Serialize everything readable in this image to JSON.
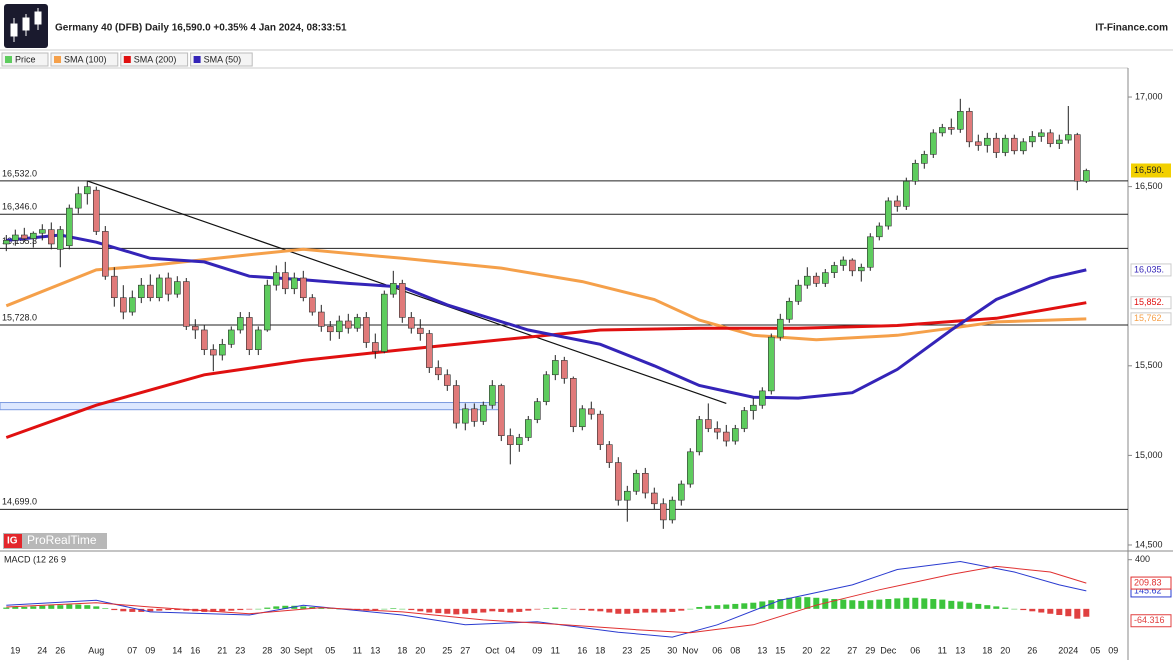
{
  "header": {
    "title": "Germany 40 (DFB) Daily 16,590.0 +0.35% 4 Jan 2024, 08:33:51",
    "site": "IT-Finance.com",
    "logo": "ProRealTime"
  },
  "chart_data": [
    {
      "type": "candlestick",
      "name": "Price",
      "color_up": "#5ecc5e",
      "color_down": "#e07a7a",
      "last_label": "16,590.",
      "categories": [
        null,
        "19",
        null,
        null,
        "24",
        null,
        "26",
        null,
        null,
        null,
        "Aug",
        null,
        null,
        null,
        "07",
        null,
        "09",
        null,
        null,
        "14",
        null,
        "16",
        null,
        null,
        "21",
        null,
        "23",
        null,
        null,
        "28",
        null,
        "30",
        null,
        "Sept",
        null,
        null,
        "05",
        null,
        null,
        "11",
        null,
        "13",
        null,
        null,
        "18",
        null,
        "20",
        null,
        null,
        "25",
        null,
        "27",
        null,
        null,
        "Oct",
        null,
        "04",
        null,
        null,
        "09",
        null,
        "11",
        null,
        null,
        "16",
        null,
        "18",
        null,
        null,
        "23",
        null,
        "25",
        null,
        null,
        "30",
        null,
        "Nov",
        null,
        null,
        "06",
        null,
        "08",
        null,
        null,
        "13",
        null,
        "15",
        null,
        null,
        "20",
        null,
        "22",
        null,
        null,
        "27",
        null,
        "29",
        null,
        "Dec",
        null,
        null,
        "06",
        null,
        null,
        "11",
        null,
        "13",
        null,
        null,
        "18",
        null,
        "20",
        null,
        null,
        "26",
        null,
        null,
        null,
        "2024",
        null,
        null,
        "05",
        null,
        "09"
      ],
      "candles": [
        [
          16180,
          16230,
          16140,
          16200
        ],
        [
          16200,
          16260,
          16170,
          16230
        ],
        [
          16230,
          16270,
          16190,
          16210
        ],
        [
          16210,
          16250,
          16160,
          16240
        ],
        [
          16240,
          16290,
          16200,
          16260
        ],
        [
          16260,
          16300,
          16150,
          16180
        ],
        [
          16150,
          16280,
          16050,
          16260
        ],
        [
          16170,
          16400,
          16150,
          16380
        ],
        [
          16380,
          16500,
          16350,
          16460
        ],
        [
          16460,
          16532,
          16400,
          16500
        ],
        [
          16480,
          16500,
          16230,
          16250
        ],
        [
          16250,
          16280,
          15980,
          16000
        ],
        [
          16000,
          16050,
          15830,
          15880
        ],
        [
          15880,
          15950,
          15760,
          15800
        ],
        [
          15800,
          15920,
          15780,
          15880
        ],
        [
          15880,
          15990,
          15850,
          15950
        ],
        [
          15950,
          16010,
          15860,
          15880
        ],
        [
          15880,
          16010,
          15860,
          15990
        ],
        [
          15990,
          16020,
          15860,
          15900
        ],
        [
          15900,
          16000,
          15880,
          15970
        ],
        [
          15970,
          15990,
          15700,
          15720
        ],
        [
          15720,
          15760,
          15650,
          15700
        ],
        [
          15700,
          15730,
          15560,
          15590
        ],
        [
          15590,
          15620,
          15470,
          15560
        ],
        [
          15560,
          15650,
          15530,
          15620
        ],
        [
          15620,
          15720,
          15600,
          15700
        ],
        [
          15700,
          15800,
          15680,
          15770
        ],
        [
          15770,
          15800,
          15560,
          15590
        ],
        [
          15590,
          15720,
          15560,
          15700
        ],
        [
          15700,
          15980,
          15690,
          15950
        ],
        [
          15950,
          16060,
          15920,
          16020
        ],
        [
          16020,
          16080,
          15900,
          15930
        ],
        [
          15930,
          16020,
          15900,
          15990
        ],
        [
          15990,
          16030,
          15860,
          15880
        ],
        [
          15880,
          15900,
          15780,
          15800
        ],
        [
          15800,
          15840,
          15690,
          15720
        ],
        [
          15720,
          15750,
          15640,
          15690
        ],
        [
          15690,
          15780,
          15650,
          15750
        ],
        [
          15750,
          15790,
          15680,
          15710
        ],
        [
          15710,
          15790,
          15690,
          15770
        ],
        [
          15770,
          15800,
          15600,
          15630
        ],
        [
          15630,
          15680,
          15540,
          15580
        ],
        [
          15580,
          15920,
          15570,
          15900
        ],
        [
          15900,
          16030,
          15880,
          15960
        ],
        [
          15960,
          15980,
          15740,
          15770
        ],
        [
          15770,
          15800,
          15680,
          15710
        ],
        [
          15710,
          15760,
          15640,
          15680
        ],
        [
          15680,
          15700,
          15460,
          15490
        ],
        [
          15490,
          15530,
          15420,
          15450
        ],
        [
          15450,
          15480,
          15360,
          15390
        ],
        [
          15390,
          15420,
          15150,
          15180
        ],
        [
          15180,
          15290,
          15140,
          15260
        ],
        [
          15260,
          15290,
          15160,
          15190
        ],
        [
          15190,
          15300,
          15170,
          15280
        ],
        [
          15280,
          15420,
          15260,
          15390
        ],
        [
          15390,
          15400,
          15080,
          15110
        ],
        [
          15110,
          15150,
          14950,
          15060
        ],
        [
          15060,
          15120,
          15020,
          15100
        ],
        [
          15100,
          15220,
          15080,
          15200
        ],
        [
          15200,
          15320,
          15180,
          15300
        ],
        [
          15300,
          15470,
          15280,
          15450
        ],
        [
          15450,
          15560,
          15420,
          15530
        ],
        [
          15530,
          15550,
          15400,
          15430
        ],
        [
          15430,
          15440,
          15130,
          15160
        ],
        [
          15160,
          15280,
          15140,
          15260
        ],
        [
          15260,
          15300,
          15200,
          15230
        ],
        [
          15230,
          15250,
          15030,
          15060
        ],
        [
          15060,
          15080,
          14930,
          14960
        ],
        [
          14960,
          14990,
          14720,
          14750
        ],
        [
          14750,
          14830,
          14630,
          14800
        ],
        [
          14800,
          14920,
          14780,
          14900
        ],
        [
          14900,
          14930,
          14760,
          14790
        ],
        [
          14790,
          14820,
          14700,
          14730
        ],
        [
          14730,
          14760,
          14590,
          14640
        ],
        [
          14640,
          14770,
          14620,
          14750
        ],
        [
          14750,
          14860,
          14720,
          14840
        ],
        [
          14840,
          15040,
          14820,
          15020
        ],
        [
          15020,
          15220,
          15000,
          15200
        ],
        [
          15200,
          15290,
          15130,
          15150
        ],
        [
          15150,
          15190,
          15090,
          15130
        ],
        [
          15130,
          15170,
          15050,
          15080
        ],
        [
          15080,
          15170,
          15060,
          15150
        ],
        [
          15150,
          15270,
          15130,
          15250
        ],
        [
          15250,
          15320,
          15200,
          15280
        ],
        [
          15280,
          15380,
          15260,
          15360
        ],
        [
          15360,
          15680,
          15340,
          15660
        ],
        [
          15660,
          15790,
          15640,
          15760
        ],
        [
          15760,
          15880,
          15740,
          15860
        ],
        [
          15860,
          15980,
          15840,
          15950
        ],
        [
          15950,
          16050,
          15930,
          16000
        ],
        [
          16000,
          16020,
          15940,
          15960
        ],
        [
          15960,
          16040,
          15940,
          16020
        ],
        [
          16020,
          16080,
          15990,
          16060
        ],
        [
          16060,
          16110,
          16030,
          16090
        ],
        [
          16090,
          16100,
          16000,
          16030
        ],
        [
          16030,
          16070,
          15970,
          16050
        ],
        [
          16050,
          16240,
          16030,
          16220
        ],
        [
          16220,
          16300,
          16200,
          16280
        ],
        [
          16280,
          16440,
          16260,
          16420
        ],
        [
          16420,
          16450,
          16360,
          16390
        ],
        [
          16390,
          16550,
          16370,
          16530
        ],
        [
          16530,
          16650,
          16510,
          16630
        ],
        [
          16630,
          16700,
          16600,
          16680
        ],
        [
          16680,
          16820,
          16660,
          16800
        ],
        [
          16800,
          16850,
          16780,
          16830
        ],
        [
          16830,
          16880,
          16790,
          16820
        ],
        [
          16820,
          16990,
          16800,
          16920
        ],
        [
          16920,
          16940,
          16720,
          16750
        ],
        [
          16750,
          16790,
          16700,
          16730
        ],
        [
          16730,
          16800,
          16690,
          16770
        ],
        [
          16770,
          16800,
          16660,
          16690
        ],
        [
          16690,
          16790,
          16670,
          16770
        ],
        [
          16770,
          16790,
          16680,
          16700
        ],
        [
          16700,
          16770,
          16680,
          16750
        ],
        [
          16750,
          16810,
          16720,
          16780
        ],
        [
          16780,
          16820,
          16750,
          16800
        ],
        [
          16800,
          16820,
          16720,
          16740
        ],
        [
          16740,
          16790,
          16710,
          16760
        ],
        [
          16760,
          16950,
          16740,
          16790
        ],
        [
          16790,
          16800,
          16480,
          16530
        ],
        [
          16530,
          16600,
          16520,
          16590
        ],
        null,
        null,
        null
      ],
      "series": [
        {
          "name": "SMA (100)",
          "color": "#f5a04a",
          "end_label": "15,762.",
          "x": [
            0,
            10,
            16,
            27,
            33,
            44,
            55,
            64,
            72,
            77,
            83,
            90,
            99,
            105,
            110,
            120
          ],
          "values": [
            15835,
            16035,
            16060,
            16120,
            16150,
            16100,
            16045,
            15970,
            15870,
            15755,
            15670,
            15645,
            15670,
            15710,
            15745,
            15762
          ]
        },
        {
          "name": "SMA (200)",
          "color": "#e01010",
          "end_label": "15,852.",
          "x": [
            0,
            10,
            22,
            33,
            44,
            55,
            66,
            77,
            88,
            99,
            110,
            120
          ],
          "values": [
            15100,
            15280,
            15450,
            15530,
            15590,
            15645,
            15700,
            15710,
            15710,
            15725,
            15765,
            15852
          ]
        },
        {
          "name": "SMA (50)",
          "color": "#3424b8",
          "end_label": "16,035.",
          "x": [
            0,
            6,
            10,
            16,
            22,
            27,
            33,
            38,
            44,
            49,
            58,
            66,
            72,
            77,
            83,
            88,
            94,
            99,
            105,
            110,
            116,
            120
          ],
          "values": [
            16200,
            16230,
            16190,
            16100,
            16080,
            16000,
            15980,
            15960,
            15940,
            15840,
            15700,
            15620,
            15500,
            15390,
            15325,
            15320,
            15350,
            15480,
            15700,
            15870,
            15990,
            16035
          ]
        }
      ],
      "levels": [
        {
          "value": 16532,
          "label": "16,532.0"
        },
        {
          "value": 16346,
          "label": "16,346.0"
        },
        {
          "value": 16155.3,
          "label": "16,155.3"
        },
        {
          "value": 15728,
          "label": "15,728.0"
        },
        {
          "value": 14699,
          "label": "14,699.0"
        }
      ],
      "zone": [
        15255,
        15295
      ],
      "trendline": {
        "x": [
          9,
          80
        ],
        "values": [
          16532,
          15290
        ]
      },
      "ylim": [
        14472,
        17162
      ],
      "yticks": [
        {
          "value": 14500,
          "label": "14,500"
        },
        {
          "value": 15000,
          "label": "15,000"
        },
        {
          "value": 15500,
          "label": "15,500"
        },
        {
          "value": 16500,
          "label": "16,500"
        },
        {
          "value": 17000,
          "label": "17,000"
        }
      ]
    },
    {
      "type": "macd",
      "title": "MACD (12 26 9",
      "ylim": [
        -400,
        430
      ],
      "yticks": [
        400
      ],
      "series": [
        {
          "name": "MACD",
          "color": "#2a3bd0",
          "x": [
            0,
            10,
            16,
            27,
            33,
            44,
            51,
            59,
            68,
            74,
            79,
            86,
            94,
            99,
            106,
            112,
            117,
            120
          ],
          "values": [
            30,
            70,
            -25,
            -50,
            30,
            -50,
            -130,
            -105,
            -190,
            -230,
            -130,
            70,
            195,
            320,
            385,
            300,
            195,
            145.62
          ]
        },
        {
          "name": "Signal",
          "color": "#e03030",
          "x": [
            0,
            10,
            16,
            27,
            35,
            44,
            53,
            62,
            70,
            76,
            83,
            90,
            97,
            105,
            110,
            116,
            120
          ],
          "values": [
            15,
            50,
            15,
            -40,
            10,
            -25,
            -90,
            -130,
            -170,
            -195,
            -130,
            30,
            155,
            280,
            345,
            300,
            209.83
          ]
        }
      ],
      "histogram": {
        "color_up": "#3cc43c",
        "color_down": "#e04040",
        "values": [
          10,
          15,
          15,
          20,
          25,
          30,
          30,
          35,
          35,
          30,
          20,
          5,
          -10,
          -20,
          -25,
          -25,
          -20,
          -15,
          -10,
          -10,
          -15,
          -20,
          -25,
          -25,
          -20,
          -15,
          -10,
          -5,
          0,
          10,
          20,
          25,
          25,
          20,
          15,
          10,
          5,
          0,
          -5,
          -10,
          -15,
          -10,
          0,
          5,
          0,
          -10,
          -20,
          -30,
          -35,
          -40,
          -45,
          -40,
          -35,
          -30,
          -20,
          -25,
          -30,
          -25,
          -15,
          -5,
          5,
          10,
          5,
          -5,
          -10,
          -15,
          -20,
          -30,
          -40,
          -40,
          -35,
          -30,
          -30,
          -30,
          -25,
          -15,
          0,
          15,
          25,
          30,
          35,
          40,
          45,
          50,
          60,
          70,
          80,
          90,
          95,
          95,
          90,
          85,
          80,
          75,
          70,
          65,
          70,
          75,
          80,
          85,
          90,
          90,
          85,
          80,
          75,
          65,
          60,
          50,
          40,
          30,
          20,
          10,
          0,
          -10,
          -20,
          -30,
          -40,
          -50,
          -60,
          -80,
          -64.316
        ]
      }
    }
  ]
}
